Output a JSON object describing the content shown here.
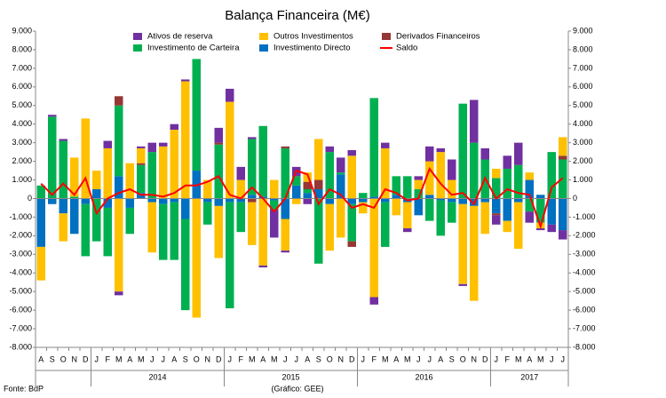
{
  "chart_data": {
    "type": "bar",
    "stacked": true,
    "title": "Balança Financeira (M€)",
    "source": "Fonte: BdP",
    "credit": "(Gráfico: GEE)",
    "categories": [
      "A",
      "S",
      "O",
      "N",
      "D",
      "J",
      "F",
      "M",
      "A",
      "M",
      "J",
      "J",
      "A",
      "S",
      "O",
      "N",
      "D",
      "J",
      "F",
      "M",
      "A",
      "M",
      "J",
      "J",
      "A",
      "S",
      "O",
      "N",
      "D",
      "J",
      "F",
      "M",
      "A",
      "M",
      "J",
      "J",
      "A",
      "S",
      "O",
      "N",
      "D",
      "J",
      "F",
      "M",
      "A",
      "M",
      "J",
      "J"
    ],
    "year_labels": [
      "2014",
      "2015",
      "2016",
      "2017"
    ],
    "ylim": [
      -8000,
      9000
    ],
    "yticks": [
      {
        "value": -8000,
        "label": "-8.000"
      },
      {
        "value": -7000,
        "label": "-7.000"
      },
      {
        "value": -6000,
        "label": "-6.000"
      },
      {
        "value": -5000,
        "label": "-5.000"
      },
      {
        "value": -4000,
        "label": "-4.000"
      },
      {
        "value": -3000,
        "label": "-3.000"
      },
      {
        "value": -2000,
        "label": "-2.000"
      },
      {
        "value": -1000,
        "label": "-1.000"
      },
      0,
      {
        "value": 1000,
        "label": "1.000"
      },
      {
        "value": 2000,
        "label": "2.000"
      },
      {
        "value": 3000,
        "label": "3.000"
      },
      {
        "value": 4000,
        "label": "4.000"
      },
      {
        "value": 5000,
        "label": "5.000"
      },
      {
        "value": 6000,
        "label": "6.000"
      },
      {
        "value": 7000,
        "label": "7.000"
      },
      {
        "value": 8000,
        "label": "8.000"
      },
      {
        "value": 9000,
        "label": "9.000"
      }
    ],
    "series": [
      {
        "name": "Investimento Directo",
        "color": "#0070c0",
        "values": [
          -2600,
          -300,
          -800,
          -1900,
          -300,
          500,
          -500,
          1200,
          -500,
          300,
          -200,
          -300,
          -200,
          -1100,
          1500,
          -200,
          -400,
          -200,
          -200,
          200,
          100,
          -100,
          -1100,
          700,
          300,
          500,
          -300,
          1300,
          -300,
          -200,
          100,
          -200,
          200,
          -200,
          -900,
          200,
          -100,
          -200,
          -300,
          -400,
          -200,
          -800,
          -1200,
          -200,
          1000,
          200,
          -1400,
          -1700
        ]
      },
      {
        "name": "Investimento de Carteira",
        "color": "#00b050",
        "values": [
          700,
          4400,
          3100,
          100,
          -2800,
          -2300,
          -2600,
          3800,
          -1400,
          1500,
          2500,
          -3000,
          -3100,
          -4900,
          6000,
          -1200,
          2900,
          -5700,
          -1600,
          3000,
          3800,
          -500,
          2700,
          500,
          200,
          -3500,
          2500,
          100,
          -2000,
          300,
          5300,
          -2400,
          1000,
          1200,
          500,
          -1200,
          -1900,
          -1100,
          5100,
          3000,
          2100,
          1100,
          1600,
          1800,
          -700,
          -1300,
          2500,
          2100
        ]
      },
      {
        "name": "Derivados Financeiros",
        "color": "#953735",
        "values": [
          0,
          0,
          0,
          0,
          0,
          0,
          0,
          500,
          0,
          100,
          0,
          0,
          0,
          0,
          0,
          0,
          100,
          0,
          0,
          -200,
          0,
          0,
          100,
          0,
          400,
          500,
          0,
          0,
          -300,
          0,
          0,
          0,
          0,
          0,
          0,
          0,
          0,
          0,
          0,
          0,
          0,
          -100,
          0,
          0,
          0,
          0,
          0,
          200
        ]
      },
      {
        "name": "Outros Investimentos",
        "color": "#ffc000",
        "values": [
          -1800,
          0,
          -1500,
          2100,
          4300,
          1000,
          2700,
          -5000,
          1900,
          800,
          -2700,
          2800,
          3700,
          6300,
          -6400,
          1000,
          -2800,
          5200,
          1000,
          -2300,
          -3600,
          1000,
          -1700,
          -300,
          500,
          2200,
          -2500,
          -2100,
          2300,
          -600,
          -5300,
          2700,
          -900,
          -1400,
          500,
          1800,
          2500,
          1000,
          -4300,
          -5100,
          -1700,
          500,
          -600,
          -2500,
          400,
          -300,
          0,
          1000
        ]
      },
      {
        "name": "Ativos de reserva",
        "color": "#7030a0",
        "values": [
          0,
          100,
          100,
          0,
          0,
          0,
          400,
          -200,
          0,
          100,
          500,
          200,
          300,
          100,
          0,
          0,
          800,
          700,
          700,
          100,
          -100,
          -1500,
          -100,
          500,
          -300,
          0,
          300,
          800,
          300,
          0,
          -400,
          300,
          0,
          -200,
          200,
          800,
          200,
          1100,
          -100,
          2300,
          600,
          -500,
          700,
          1200,
          -600,
          -100,
          -400,
          -500
        ]
      },
      {
        "name": "Saldo",
        "color": "#ff0000",
        "type": "line",
        "values": [
          800,
          200,
          800,
          200,
          1100,
          -800,
          0,
          300,
          500,
          200,
          200,
          100,
          300,
          700,
          700,
          900,
          1200,
          200,
          0,
          600,
          0,
          -700,
          0,
          1500,
          1300,
          -300,
          500,
          200,
          -500,
          -300,
          -500,
          500,
          300,
          -100,
          0,
          1600,
          800,
          200,
          300,
          -300,
          1100,
          0,
          500,
          300,
          200,
          -1500,
          600,
          1100
        ]
      }
    ]
  }
}
